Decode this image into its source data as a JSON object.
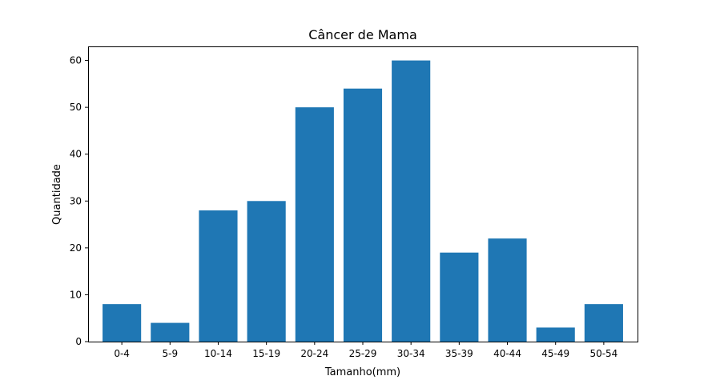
{
  "chart_data": {
    "type": "bar",
    "title": "Câncer de Mama",
    "xlabel": "Tamanho(mm)",
    "ylabel": "Quantidade",
    "categories": [
      "0-4",
      "5-9",
      "10-14",
      "15-19",
      "20-24",
      "25-29",
      "30-34",
      "35-39",
      "40-44",
      "45-49",
      "50-54"
    ],
    "values": [
      8,
      4,
      28,
      30,
      50,
      54,
      60,
      19,
      22,
      3,
      8
    ],
    "ylim": [
      0,
      63
    ],
    "yticks": [
      0,
      10,
      20,
      30,
      40,
      50,
      60
    ],
    "grid": false,
    "legend": "none",
    "bar_color": "#1f77b4"
  }
}
